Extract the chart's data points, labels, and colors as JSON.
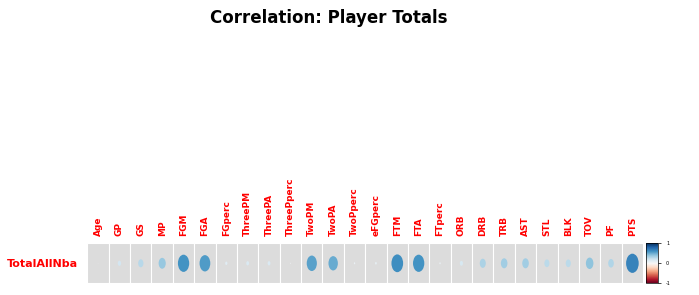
{
  "title": "Correlation: Player Totals",
  "row_label": "TotalAllNba",
  "columns": [
    "Age",
    "GP",
    "GS",
    "MP",
    "FGM",
    "FGA",
    "FGperc",
    "ThreePM",
    "ThreePA",
    "ThreePperc",
    "TwoPM",
    "TwoPA",
    "TwoPperc",
    "eFGperc",
    "FTM",
    "FTA",
    "FTperc",
    "ORB",
    "DRB",
    "TRB",
    "AST",
    "STL",
    "BLK",
    "TOV",
    "PF",
    "PTS"
  ],
  "corr_values": [
    0.02,
    0.18,
    0.28,
    0.38,
    0.6,
    0.57,
    0.12,
    0.15,
    0.15,
    0.04,
    0.54,
    0.5,
    0.07,
    0.09,
    0.62,
    0.6,
    0.07,
    0.17,
    0.32,
    0.35,
    0.35,
    0.27,
    0.27,
    0.4,
    0.3,
    0.67
  ],
  "title_fontsize": 12,
  "label_fontsize": 6.5,
  "row_label_fontsize": 8,
  "text_color": "#ff0000",
  "cell_bg": "#dcdcdc",
  "cell_edge": "#ffffff"
}
